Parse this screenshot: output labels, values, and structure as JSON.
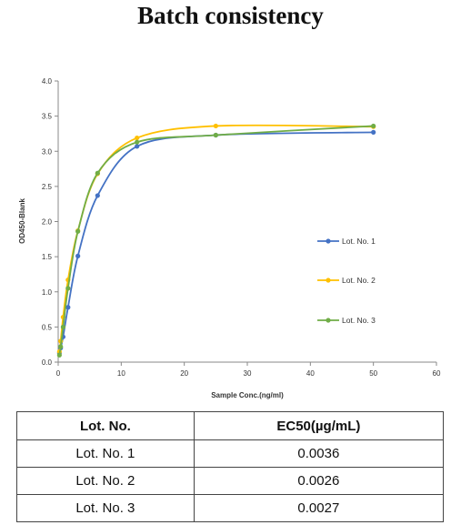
{
  "title": "Batch consistency",
  "colors": {
    "lot1": "#4472c4",
    "lot2": "#ffc000",
    "lot3": "#70ad47",
    "axis": "#888888",
    "text": "#333333"
  },
  "chart_data": {
    "type": "line",
    "title": "",
    "xlabel": "Sample Conc.(ng/ml)",
    "ylabel": "OD450-Blank",
    "xlim": [
      0,
      60
    ],
    "ylim": [
      0,
      4.0
    ],
    "x_ticks": [
      "0",
      "10",
      "20",
      "30",
      "40",
      "50",
      "60"
    ],
    "y_ticks": [
      "0.0",
      "0.5",
      "1.0",
      "1.5",
      "2.0",
      "2.5",
      "3.0",
      "3.5",
      "4.0"
    ],
    "grid": false,
    "legend_position": "right",
    "series": [
      {
        "name": "Lot. No. 1",
        "color_key": "lot1",
        "points": [
          [
            0.195,
            0.13
          ],
          [
            0.39,
            0.2
          ],
          [
            0.78,
            0.36
          ],
          [
            1.56,
            0.78
          ],
          [
            3.125,
            1.51
          ],
          [
            6.25,
            2.37
          ],
          [
            12.5,
            3.07
          ],
          [
            25,
            3.23
          ],
          [
            50,
            3.27
          ]
        ]
      },
      {
        "name": "Lot. No. 2",
        "color_key": "lot2",
        "points": [
          [
            0.195,
            0.15
          ],
          [
            0.39,
            0.3
          ],
          [
            0.78,
            0.64
          ],
          [
            1.56,
            1.17
          ],
          [
            3.125,
            1.87
          ],
          [
            6.25,
            2.68
          ],
          [
            12.5,
            3.19
          ],
          [
            25,
            3.36
          ],
          [
            50,
            3.35
          ]
        ]
      },
      {
        "name": "Lot. No. 3",
        "color_key": "lot3",
        "points": [
          [
            0.195,
            0.1
          ],
          [
            0.39,
            0.22
          ],
          [
            0.78,
            0.5
          ],
          [
            1.56,
            1.05
          ],
          [
            3.125,
            1.86
          ],
          [
            6.25,
            2.69
          ],
          [
            12.5,
            3.13
          ],
          [
            25,
            3.23
          ],
          [
            50,
            3.36
          ]
        ]
      }
    ]
  },
  "table": {
    "headers": [
      "Lot. No.",
      "EC50(µg/mL)"
    ],
    "rows": [
      [
        "Lot. No. 1",
        "0.0036"
      ],
      [
        "Lot. No. 2",
        "0.0026"
      ],
      [
        "Lot. No. 3",
        "0.0027"
      ]
    ]
  }
}
